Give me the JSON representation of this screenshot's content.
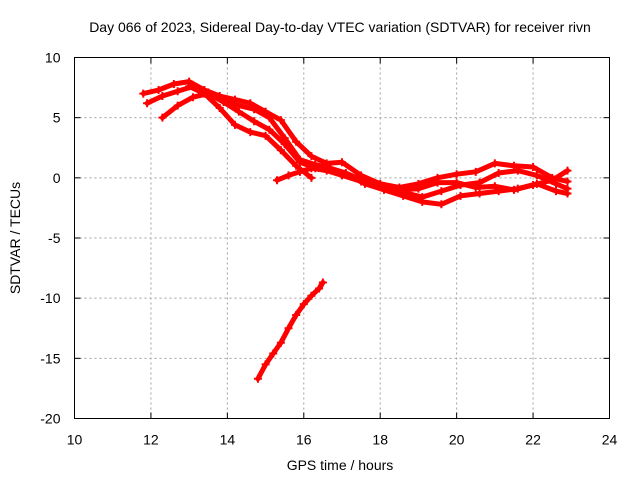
{
  "chart_data": {
    "type": "scatter",
    "title": "Day 066 of 2023, Sidereal Day-to-day VTEC variation (SDTVAR) for receiver rivn",
    "xlabel": "GPS time / hours",
    "ylabel": "SDTVAR / TECUs",
    "xlim": [
      10,
      24
    ],
    "ylim": [
      -20,
      10
    ],
    "xticks": [
      10,
      12,
      14,
      16,
      18,
      20,
      22,
      24
    ],
    "yticks": [
      -20,
      -15,
      -10,
      -5,
      0,
      5,
      10
    ],
    "grid": true,
    "marker_color": "#ff0000",
    "series": [
      {
        "name": "arc-1",
        "x": [
          11.8,
          12.2,
          12.6,
          13.0,
          13.4,
          13.8,
          14.2,
          14.6,
          15.0,
          15.4,
          15.8,
          16.2,
          16.6,
          17.0,
          17.5,
          18.0,
          18.5,
          19.0,
          19.5,
          20.0,
          20.5,
          21.0,
          21.5,
          22.0,
          22.5,
          22.9
        ],
        "y": [
          7.0,
          7.3,
          7.8,
          8.0,
          7.3,
          6.8,
          6.5,
          6.2,
          5.5,
          4.8,
          3.0,
          1.8,
          1.2,
          1.3,
          0.2,
          -0.5,
          -0.8,
          -0.5,
          0.0,
          0.3,
          0.5,
          1.2,
          1.0,
          0.9,
          0.0,
          -0.3
        ]
      },
      {
        "name": "arc-2",
        "x": [
          11.9,
          12.3,
          12.7,
          13.1,
          13.5,
          13.9,
          14.3,
          14.7,
          15.1,
          15.5,
          15.9,
          16.3,
          16.7,
          17.1,
          17.6,
          18.1,
          18.6,
          19.1,
          19.6,
          20.1,
          20.6,
          21.1,
          21.6,
          22.1,
          22.6,
          22.9
        ],
        "y": [
          6.2,
          6.8,
          7.2,
          7.6,
          7.1,
          6.4,
          6.0,
          5.7,
          5.0,
          3.3,
          1.5,
          1.1,
          0.8,
          0.4,
          -0.3,
          -0.7,
          -1.2,
          -1.6,
          -1.1,
          -0.6,
          -0.4,
          0.4,
          0.6,
          0.2,
          -0.5,
          -0.9
        ]
      },
      {
        "name": "arc-3",
        "x": [
          12.3,
          12.7,
          13.1,
          13.5,
          13.9,
          14.3,
          14.7,
          15.1,
          15.5,
          15.9,
          16.3,
          16.7,
          17.1,
          17.6,
          18.1,
          18.6,
          19.1,
          19.6,
          20.1,
          20.6,
          21.1,
          21.6,
          22.1,
          22.6,
          22.9
        ],
        "y": [
          5.0,
          6.0,
          6.7,
          7.0,
          6.3,
          5.5,
          4.7,
          4.0,
          2.8,
          1.3,
          0.8,
          0.7,
          0.3,
          -0.5,
          -1.0,
          -1.5,
          -2.0,
          -2.2,
          -1.5,
          -1.3,
          -1.1,
          -0.9,
          -0.5,
          -1.1,
          -1.3
        ]
      },
      {
        "name": "arc-4",
        "x": [
          13.0,
          13.4,
          13.8,
          14.2,
          14.6,
          15.0,
          15.4,
          15.8,
          16.2
        ],
        "y": [
          7.6,
          7.0,
          5.8,
          4.4,
          3.8,
          3.5,
          2.3,
          1.0,
          0.0
        ]
      },
      {
        "name": "arc-5",
        "x": [
          15.3,
          15.6,
          15.9,
          16.2,
          16.6,
          17.0,
          17.5,
          18.0,
          18.5,
          19.0,
          19.5,
          20.0,
          20.5,
          21.0,
          21.5,
          22.0,
          22.5,
          22.9
        ],
        "y": [
          -0.2,
          0.2,
          0.5,
          0.8,
          0.6,
          0.2,
          -0.3,
          -0.6,
          -1.0,
          -0.9,
          -0.4,
          -0.4,
          -0.8,
          -0.7,
          -1.0,
          -0.6,
          -0.2,
          0.6
        ]
      },
      {
        "name": "arc-6",
        "x": [
          14.8,
          15.0,
          15.2,
          15.4,
          15.6,
          15.8,
          16.0,
          16.2,
          16.4,
          16.5
        ],
        "y": [
          -16.7,
          -15.5,
          -14.6,
          -13.7,
          -12.5,
          -11.4,
          -10.5,
          -9.8,
          -9.2,
          -8.7
        ]
      }
    ]
  }
}
